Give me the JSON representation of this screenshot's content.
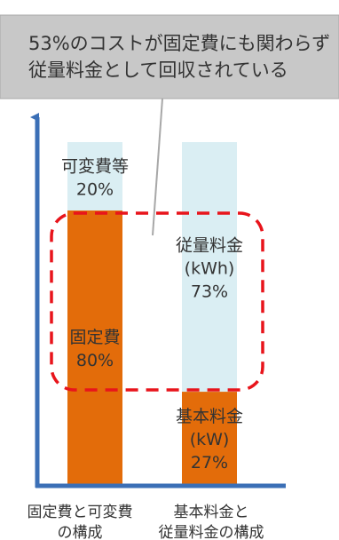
{
  "callout": {
    "line1": "53%のコストが固定費にも関わらず",
    "line2": "従量料金として回収されている"
  },
  "chart_data": {
    "type": "bar",
    "stacked": true,
    "ylim": [
      0,
      100
    ],
    "categories": [
      "固定費と可変費の構成",
      "基本料金と従量料金の構成"
    ],
    "category_lines": [
      [
        "固定費と可変費",
        "の構成"
      ],
      [
        "基本料金と",
        "従量料金の構成"
      ]
    ],
    "bars": [
      {
        "segments": [
          {
            "label_lines": [
              "固定費",
              "80%"
            ],
            "value": 80,
            "color": "#E36C0A"
          },
          {
            "label_lines": [
              "可変費等",
              "20%"
            ],
            "value": 20,
            "color": "#DAEEF3"
          }
        ]
      },
      {
        "segments": [
          {
            "label_lines": [
              "基本料金",
              "(kW)",
              "27%"
            ],
            "value": 27,
            "color": "#E36C0A"
          },
          {
            "label_lines": [
              "従量料金",
              "(kWh)",
              "73%"
            ],
            "value": 73,
            "color": "#DAEEF3"
          }
        ]
      }
    ],
    "highlight": {
      "range": [
        27,
        80
      ],
      "value": 53,
      "style": "dashed",
      "color": "#E8141B"
    },
    "grid": false,
    "legend": "none"
  },
  "colors": {
    "axis": "#3B6FB6",
    "callout_bg": "#C8C8C8",
    "callout_border": "#A8A8A8",
    "text": "#333333"
  }
}
